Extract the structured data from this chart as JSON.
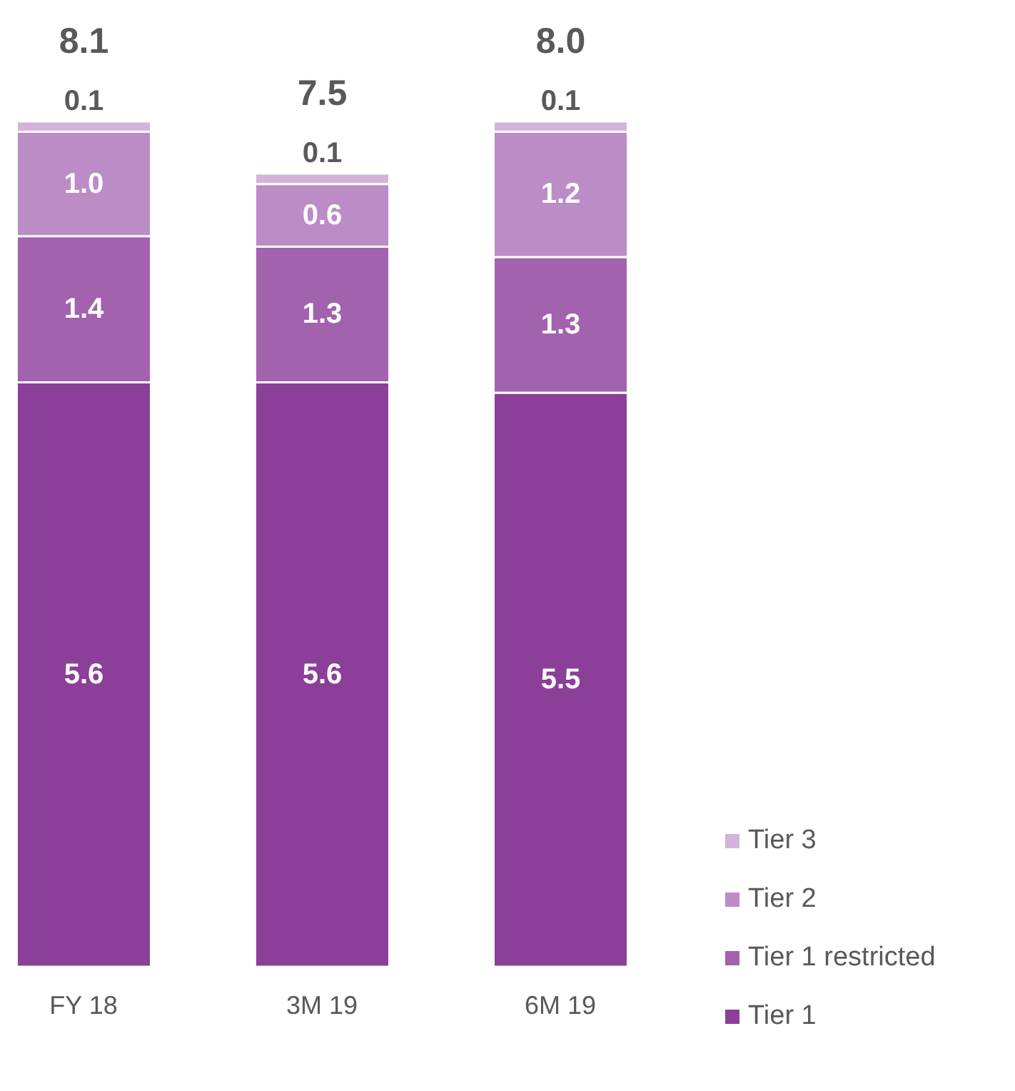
{
  "chart_data": {
    "type": "bar",
    "stacked": true,
    "categories": [
      "FY 18",
      "3M 19",
      "6M 19"
    ],
    "series": [
      {
        "name": "Tier 1",
        "color": "#8b3f98",
        "values": [
          5.6,
          5.6,
          5.5
        ],
        "value_labels": [
          "5.6",
          "5.6",
          "5.5"
        ]
      },
      {
        "name": "Tier 1 restricted",
        "color": "#a262ae",
        "values": [
          1.4,
          1.3,
          1.3
        ],
        "value_labels": [
          "1.4",
          "1.3",
          "1.3"
        ]
      },
      {
        "name": "Tier 2",
        "color": "#bb8cc6",
        "values": [
          1.0,
          0.6,
          1.2
        ],
        "value_labels": [
          "1.0",
          "0.6",
          "1.2"
        ]
      },
      {
        "name": "Tier 3",
        "color": "#d3b3db",
        "values": [
          0.1,
          0.1,
          0.1
        ],
        "value_labels": [
          "0.1",
          "0.1",
          "0.1"
        ]
      }
    ],
    "totals": [
      "8.1",
      "7.5",
      "8.0"
    ],
    "legend": "bottom right",
    "grid": false
  }
}
